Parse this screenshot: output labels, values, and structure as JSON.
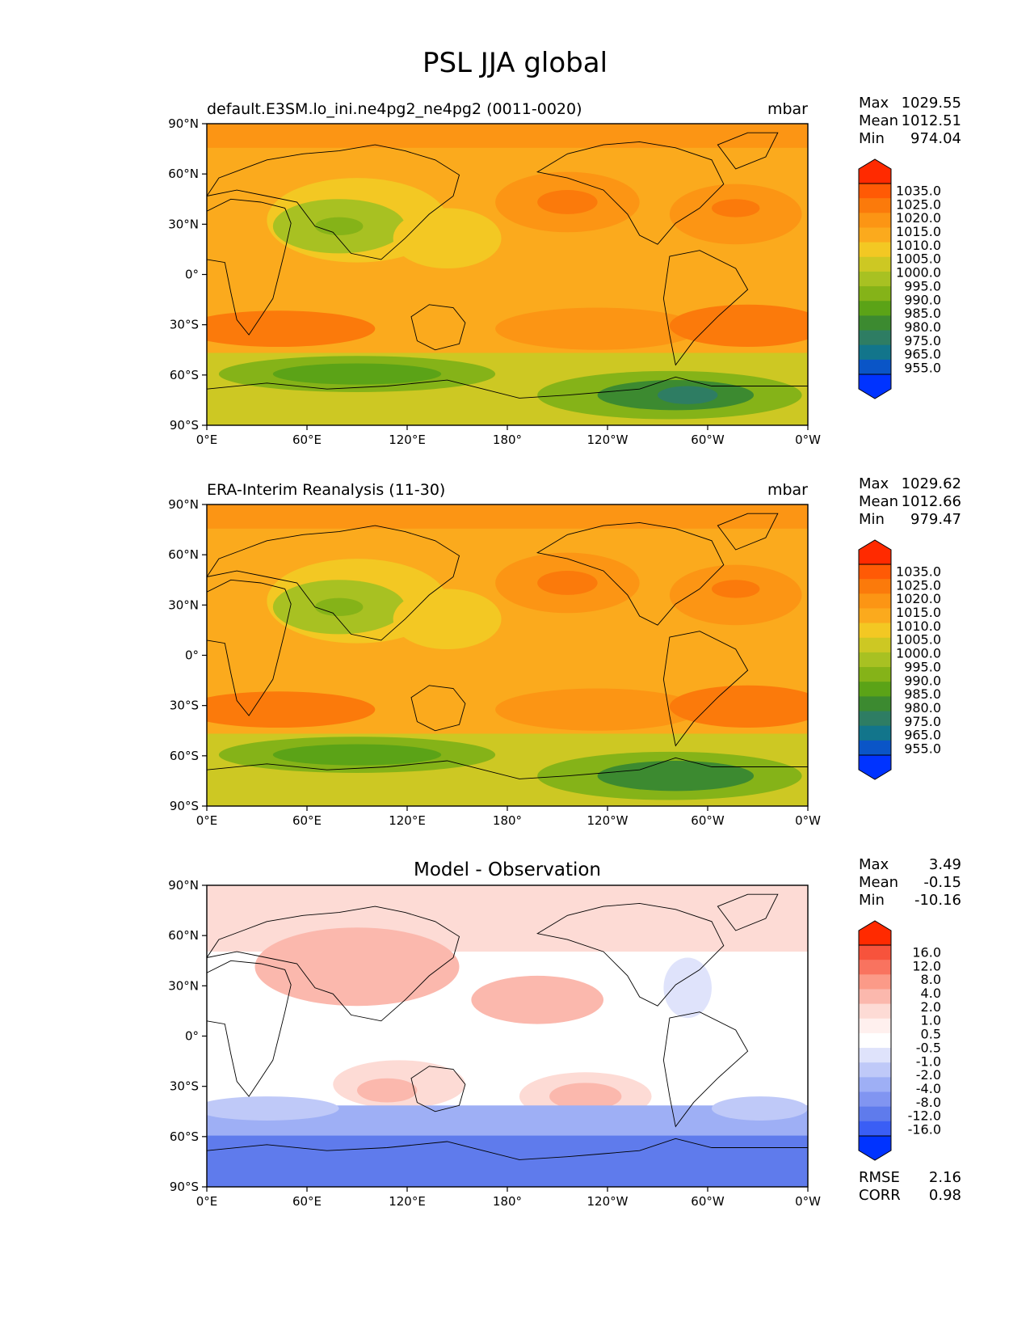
{
  "title": "PSL JJA global",
  "xticks": [
    "0°E",
    "60°E",
    "120°E",
    "180°",
    "120°W",
    "60°W",
    "0°W"
  ],
  "yticks": [
    "90°N",
    "60°N",
    "30°N",
    "0°",
    "30°S",
    "60°S",
    "90°S"
  ],
  "panels": [
    {
      "left_title": "default.E3SM.lo_ini.ne4pg2_ne4pg2 (0011-0020)",
      "center_title": "",
      "units": "mbar",
      "stats": [
        [
          "Max",
          "1029.55"
        ],
        [
          "Mean",
          "1012.51"
        ],
        [
          "Min",
          "974.04"
        ]
      ],
      "colorbar": {
        "labels": [
          "1035.0",
          "1025.0",
          "1020.0",
          "1015.0",
          "1010.0",
          "1005.0",
          "1000.0",
          "995.0",
          "990.0",
          "985.0",
          "980.0",
          "975.0",
          "965.0",
          "955.0"
        ],
        "colors": [
          "#ff2a00",
          "#ff5a05",
          "#fb7a0b",
          "#fc9514",
          "#fbaa1d",
          "#f3c823",
          "#cdc823",
          "#a8c122",
          "#85b318",
          "#5ba317",
          "#3c8a30",
          "#2e7d63",
          "#12758b",
          "#0a55c7",
          "#0033ff"
        ]
      },
      "extra_stats": []
    },
    {
      "left_title": "ERA-Interim Reanalysis (11-30)",
      "center_title": "",
      "units": "mbar",
      "stats": [
        [
          "Max",
          "1029.62"
        ],
        [
          "Mean",
          "1012.66"
        ],
        [
          "Min",
          "979.47"
        ]
      ],
      "colorbar": {
        "labels": [
          "1035.0",
          "1025.0",
          "1020.0",
          "1015.0",
          "1010.0",
          "1005.0",
          "1000.0",
          "995.0",
          "990.0",
          "985.0",
          "980.0",
          "975.0",
          "965.0",
          "955.0"
        ],
        "colors": [
          "#ff2a00",
          "#ff5a05",
          "#fb7a0b",
          "#fc9514",
          "#fbaa1d",
          "#f3c823",
          "#cdc823",
          "#a8c122",
          "#85b318",
          "#5ba317",
          "#3c8a30",
          "#2e7d63",
          "#12758b",
          "#0a55c7",
          "#0033ff"
        ]
      },
      "extra_stats": []
    },
    {
      "left_title": "",
      "center_title": "Model - Observation",
      "units": "",
      "stats": [
        [
          "Max",
          "3.49"
        ],
        [
          "Mean",
          "-0.15"
        ],
        [
          "Min",
          "-10.16"
        ]
      ],
      "colorbar": {
        "labels": [
          "16.0",
          "12.0",
          "8.0",
          "4.0",
          "2.0",
          "1.0",
          "0.5",
          "-0.5",
          "-1.0",
          "-2.0",
          "-4.0",
          "-8.0",
          "-12.0",
          "-16.0"
        ],
        "colors": [
          "#ff2a00",
          "#f7533c",
          "#f9735f",
          "#fb9a88",
          "#fbb8ad",
          "#fddbd5",
          "#fff0ee",
          "#ffffff",
          "#dfe3fb",
          "#bfc9f8",
          "#9eaff5",
          "#8195f1",
          "#5f7bec",
          "#3a5ef5",
          "#0033ff"
        ]
      },
      "extra_stats": [
        [
          "RMSE",
          "2.16"
        ],
        [
          "CORR",
          "0.98"
        ]
      ]
    }
  ]
}
